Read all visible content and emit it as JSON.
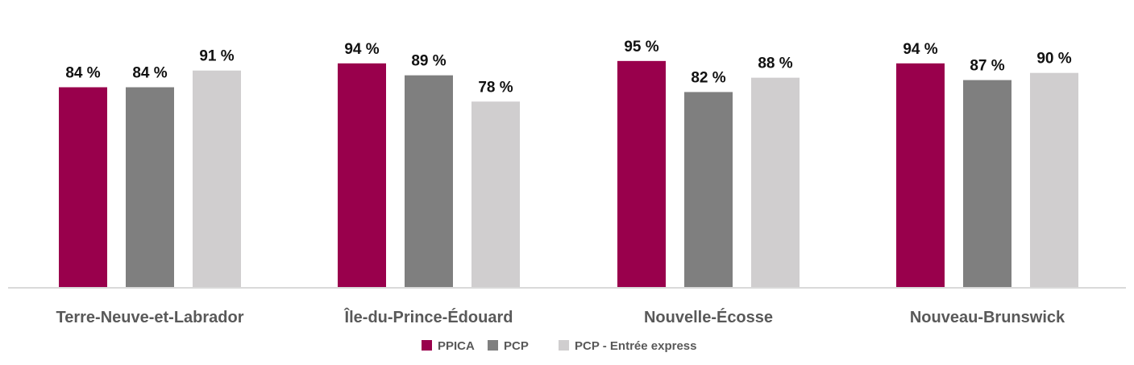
{
  "chart_data": {
    "type": "bar",
    "categories": [
      "Terre-Neuve-et-Labrador",
      "Île-du-Prince-Édouard",
      "Nouvelle-Écosse",
      "Nouveau-Brunswick"
    ],
    "series": [
      {
        "name": "PPICA",
        "values": [
          84,
          94,
          95,
          94
        ],
        "color": "#99004c"
      },
      {
        "name": "PCP",
        "values": [
          84,
          89,
          82,
          87
        ],
        "color": "#7f7f7f"
      },
      {
        "name": "PCP - Entrée express",
        "values": [
          91,
          78,
          88,
          90
        ],
        "color": "#d0cecf"
      }
    ],
    "value_suffix": " %",
    "ylim": [
      0,
      100
    ],
    "grid": false,
    "legend_position": "bottom-center",
    "baseline_color": "#d9d9d9"
  }
}
